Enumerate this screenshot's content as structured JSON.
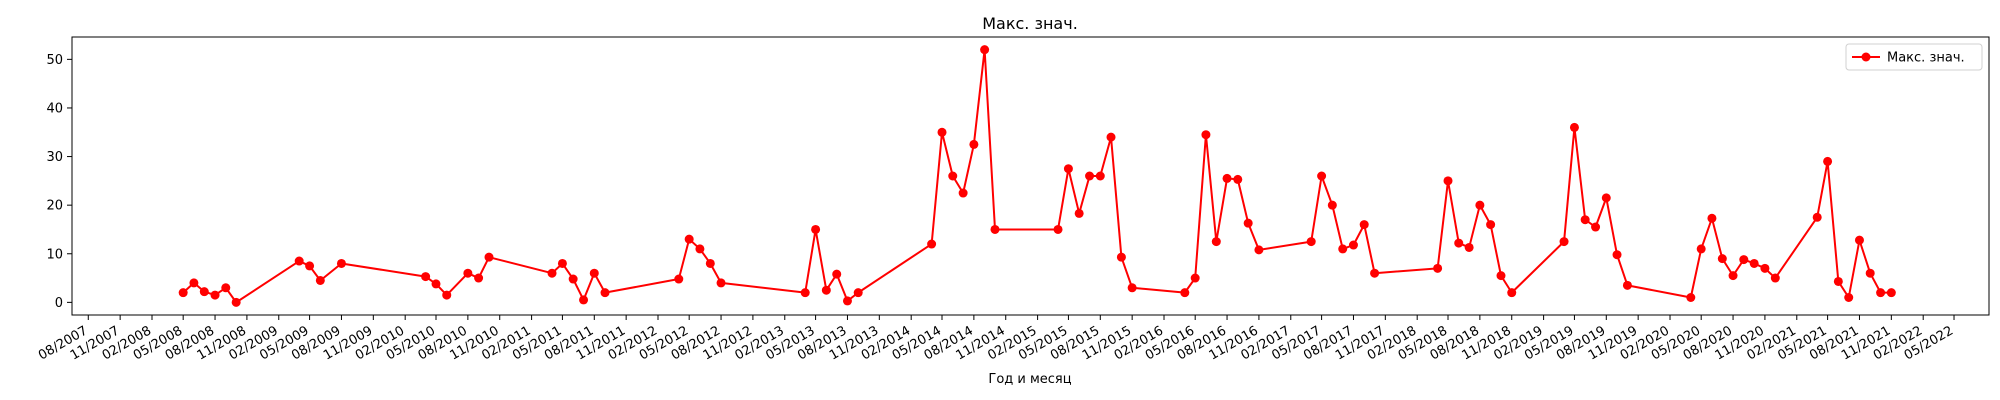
{
  "chart_data": {
    "type": "line",
    "title": "Макс. знач.",
    "xlabel": "Год и месяц",
    "ylabel": "",
    "ylim": [
      -2.6,
      54.6
    ],
    "xlim": [
      "2007-06-15",
      "2022-08-10"
    ],
    "yticks": [
      0,
      10,
      20,
      30,
      40,
      50
    ],
    "xticks": [
      {
        "date": "2007-08-01",
        "label": "08/2007"
      },
      {
        "date": "2007-11-01",
        "label": "11/2007"
      },
      {
        "date": "2008-02-01",
        "label": "02/2008"
      },
      {
        "date": "2008-05-01",
        "label": "05/2008"
      },
      {
        "date": "2008-08-01",
        "label": "08/2008"
      },
      {
        "date": "2008-11-01",
        "label": "11/2008"
      },
      {
        "date": "2009-02-01",
        "label": "02/2009"
      },
      {
        "date": "2009-05-01",
        "label": "05/2009"
      },
      {
        "date": "2009-08-01",
        "label": "08/2009"
      },
      {
        "date": "2009-11-01",
        "label": "11/2009"
      },
      {
        "date": "2010-02-01",
        "label": "02/2010"
      },
      {
        "date": "2010-05-01",
        "label": "05/2010"
      },
      {
        "date": "2010-08-01",
        "label": "08/2010"
      },
      {
        "date": "2010-11-01",
        "label": "11/2010"
      },
      {
        "date": "2011-02-01",
        "label": "02/2011"
      },
      {
        "date": "2011-05-01",
        "label": "05/2011"
      },
      {
        "date": "2011-08-01",
        "label": "08/2011"
      },
      {
        "date": "2011-11-01",
        "label": "11/2011"
      },
      {
        "date": "2012-02-01",
        "label": "02/2012"
      },
      {
        "date": "2012-05-01",
        "label": "05/2012"
      },
      {
        "date": "2012-08-01",
        "label": "08/2012"
      },
      {
        "date": "2012-11-01",
        "label": "11/2012"
      },
      {
        "date": "2013-02-01",
        "label": "02/2013"
      },
      {
        "date": "2013-05-01",
        "label": "05/2013"
      },
      {
        "date": "2013-08-01",
        "label": "08/2013"
      },
      {
        "date": "2013-11-01",
        "label": "11/2013"
      },
      {
        "date": "2014-02-01",
        "label": "02/2014"
      },
      {
        "date": "2014-05-01",
        "label": "05/2014"
      },
      {
        "date": "2014-08-01",
        "label": "08/2014"
      },
      {
        "date": "2014-11-01",
        "label": "11/2014"
      },
      {
        "date": "2015-02-01",
        "label": "02/2015"
      },
      {
        "date": "2015-05-01",
        "label": "05/2015"
      },
      {
        "date": "2015-08-01",
        "label": "08/2015"
      },
      {
        "date": "2015-11-01",
        "label": "11/2015"
      },
      {
        "date": "2016-02-01",
        "label": "02/2016"
      },
      {
        "date": "2016-05-01",
        "label": "05/2016"
      },
      {
        "date": "2016-08-01",
        "label": "08/2016"
      },
      {
        "date": "2016-11-01",
        "label": "11/2016"
      },
      {
        "date": "2017-02-01",
        "label": "02/2017"
      },
      {
        "date": "2017-05-01",
        "label": "05/2017"
      },
      {
        "date": "2017-08-01",
        "label": "08/2017"
      },
      {
        "date": "2017-11-01",
        "label": "11/2017"
      },
      {
        "date": "2018-02-01",
        "label": "02/2018"
      },
      {
        "date": "2018-05-01",
        "label": "05/2018"
      },
      {
        "date": "2018-08-01",
        "label": "08/2018"
      },
      {
        "date": "2018-11-01",
        "label": "11/2018"
      },
      {
        "date": "2019-02-01",
        "label": "02/2019"
      },
      {
        "date": "2019-05-01",
        "label": "05/2019"
      },
      {
        "date": "2019-08-01",
        "label": "08/2019"
      },
      {
        "date": "2019-11-01",
        "label": "11/2019"
      },
      {
        "date": "2020-02-01",
        "label": "02/2020"
      },
      {
        "date": "2020-05-01",
        "label": "05/2020"
      },
      {
        "date": "2020-08-01",
        "label": "08/2020"
      },
      {
        "date": "2020-11-01",
        "label": "11/2020"
      },
      {
        "date": "2021-02-01",
        "label": "02/2021"
      },
      {
        "date": "2021-05-01",
        "label": "05/2021"
      },
      {
        "date": "2021-08-01",
        "label": "08/2021"
      },
      {
        "date": "2021-11-01",
        "label": "11/2021"
      },
      {
        "date": "2022-02-01",
        "label": "02/2022"
      },
      {
        "date": "2022-05-01",
        "label": "05/2022"
      }
    ],
    "legend": {
      "placement": "top-right"
    },
    "grid": false,
    "series": [
      {
        "name": "Макс. знач.",
        "color": "#ff0000",
        "marker": "circle",
        "points": [
          {
            "x": "2008-05-01",
            "y": 2
          },
          {
            "x": "2008-06-01",
            "y": 4
          },
          {
            "x": "2008-07-01",
            "y": 2.2
          },
          {
            "x": "2008-08-01",
            "y": 1.5
          },
          {
            "x": "2008-09-01",
            "y": 3
          },
          {
            "x": "2008-10-01",
            "y": 0
          },
          {
            "x": "2009-04-01",
            "y": 8.5
          },
          {
            "x": "2009-05-01",
            "y": 7.5
          },
          {
            "x": "2009-06-01",
            "y": 4.5
          },
          {
            "x": "2009-08-01",
            "y": 8
          },
          {
            "x": "2010-04-01",
            "y": 5.3
          },
          {
            "x": "2010-05-01",
            "y": 3.8
          },
          {
            "x": "2010-06-01",
            "y": 1.5
          },
          {
            "x": "2010-08-01",
            "y": 6
          },
          {
            "x": "2010-09-01",
            "y": 5
          },
          {
            "x": "2010-10-01",
            "y": 9.3
          },
          {
            "x": "2011-04-01",
            "y": 6
          },
          {
            "x": "2011-05-01",
            "y": 8
          },
          {
            "x": "2011-06-01",
            "y": 4.8
          },
          {
            "x": "2011-07-01",
            "y": 0.5
          },
          {
            "x": "2011-08-01",
            "y": 6
          },
          {
            "x": "2011-09-01",
            "y": 2
          },
          {
            "x": "2012-04-01",
            "y": 4.8
          },
          {
            "x": "2012-05-01",
            "y": 13
          },
          {
            "x": "2012-06-01",
            "y": 11
          },
          {
            "x": "2012-07-01",
            "y": 8
          },
          {
            "x": "2012-08-01",
            "y": 4
          },
          {
            "x": "2013-04-01",
            "y": 2
          },
          {
            "x": "2013-05-01",
            "y": 15
          },
          {
            "x": "2013-06-01",
            "y": 2.5
          },
          {
            "x": "2013-07-01",
            "y": 5.8
          },
          {
            "x": "2013-08-01",
            "y": 0.3
          },
          {
            "x": "2013-09-01",
            "y": 2
          },
          {
            "x": "2014-04-01",
            "y": 12
          },
          {
            "x": "2014-05-01",
            "y": 35
          },
          {
            "x": "2014-06-01",
            "y": 26
          },
          {
            "x": "2014-07-01",
            "y": 22.5
          },
          {
            "x": "2014-08-01",
            "y": 32.5
          },
          {
            "x": "2014-09-01",
            "y": 52
          },
          {
            "x": "2014-10-01",
            "y": 15
          },
          {
            "x": "2015-04-01",
            "y": 15
          },
          {
            "x": "2015-05-01",
            "y": 27.5
          },
          {
            "x": "2015-06-01",
            "y": 18.3
          },
          {
            "x": "2015-07-01",
            "y": 26
          },
          {
            "x": "2015-08-01",
            "y": 26
          },
          {
            "x": "2015-09-01",
            "y": 34
          },
          {
            "x": "2015-10-01",
            "y": 9.3
          },
          {
            "x": "2015-11-01",
            "y": 3
          },
          {
            "x": "2016-04-01",
            "y": 2
          },
          {
            "x": "2016-05-01",
            "y": 5
          },
          {
            "x": "2016-06-01",
            "y": 34.5
          },
          {
            "x": "2016-07-01",
            "y": 12.5
          },
          {
            "x": "2016-08-01",
            "y": 25.5
          },
          {
            "x": "2016-09-01",
            "y": 25.3
          },
          {
            "x": "2016-10-01",
            "y": 16.3
          },
          {
            "x": "2016-11-01",
            "y": 10.8
          },
          {
            "x": "2017-04-01",
            "y": 12.5
          },
          {
            "x": "2017-05-01",
            "y": 26
          },
          {
            "x": "2017-06-01",
            "y": 20
          },
          {
            "x": "2017-07-01",
            "y": 11
          },
          {
            "x": "2017-08-01",
            "y": 11.8
          },
          {
            "x": "2017-09-01",
            "y": 16
          },
          {
            "x": "2017-10-01",
            "y": 6
          },
          {
            "x": "2018-04-01",
            "y": 7
          },
          {
            "x": "2018-05-01",
            "y": 25
          },
          {
            "x": "2018-06-01",
            "y": 12.2
          },
          {
            "x": "2018-07-01",
            "y": 11.3
          },
          {
            "x": "2018-08-01",
            "y": 20
          },
          {
            "x": "2018-09-01",
            "y": 16
          },
          {
            "x": "2018-10-01",
            "y": 5.5
          },
          {
            "x": "2018-11-01",
            "y": 2
          },
          {
            "x": "2019-04-01",
            "y": 12.5
          },
          {
            "x": "2019-05-01",
            "y": 36
          },
          {
            "x": "2019-06-01",
            "y": 17
          },
          {
            "x": "2019-07-01",
            "y": 15.5
          },
          {
            "x": "2019-08-01",
            "y": 21.5
          },
          {
            "x": "2019-09-01",
            "y": 9.8
          },
          {
            "x": "2019-10-01",
            "y": 3.5
          },
          {
            "x": "2020-04-01",
            "y": 1
          },
          {
            "x": "2020-05-01",
            "y": 11
          },
          {
            "x": "2020-06-01",
            "y": 17.3
          },
          {
            "x": "2020-07-01",
            "y": 9
          },
          {
            "x": "2020-08-01",
            "y": 5.5
          },
          {
            "x": "2020-09-01",
            "y": 8.8
          },
          {
            "x": "2020-10-01",
            "y": 8
          },
          {
            "x": "2020-11-01",
            "y": 7
          },
          {
            "x": "2020-12-01",
            "y": 5
          },
          {
            "x": "2021-04-01",
            "y": 17.5
          },
          {
            "x": "2021-05-01",
            "y": 29
          },
          {
            "x": "2021-06-01",
            "y": 4.3
          },
          {
            "x": "2021-07-01",
            "y": 1
          },
          {
            "x": "2021-08-01",
            "y": 12.8
          },
          {
            "x": "2021-09-01",
            "y": 6
          },
          {
            "x": "2021-10-01",
            "y": 2
          },
          {
            "x": "2021-11-01",
            "y": 2
          }
        ]
      }
    ]
  }
}
